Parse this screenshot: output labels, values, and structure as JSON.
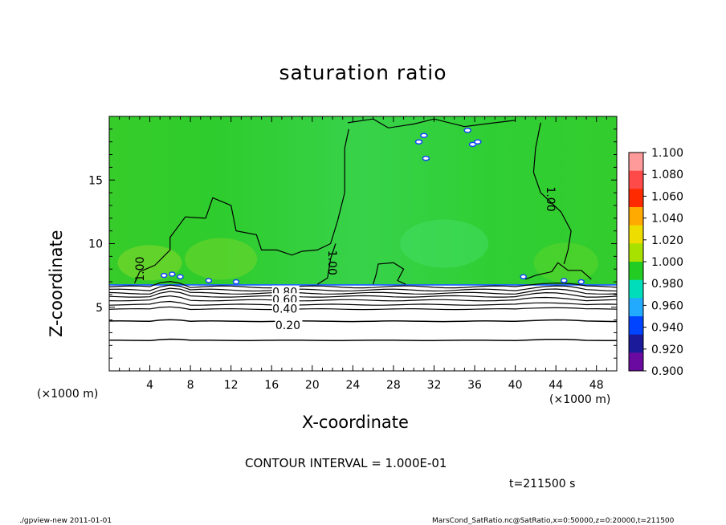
{
  "chart_data": {
    "type": "heatmap",
    "title": "saturation ratio",
    "xlabel": "X-coordinate",
    "ylabel": "Z-coordinate",
    "x_unit": "(×1000 m)",
    "y_unit": "(×1000 m)",
    "xlim": [
      0,
      50
    ],
    "ylim": [
      0,
      20
    ],
    "x_ticks": [
      4,
      8,
      12,
      16,
      20,
      24,
      28,
      32,
      36,
      40,
      44,
      48
    ],
    "y_ticks": [
      5,
      10,
      15
    ],
    "colorbar": {
      "levels": [
        "1.100",
        "1.080",
        "1.060",
        "1.040",
        "1.020",
        "1.000",
        "0.980",
        "0.960",
        "0.940",
        "0.920",
        "0.900"
      ],
      "colors": [
        "#ff9a9a",
        "#ff4a4a",
        "#ff2a00",
        "#ffaa00",
        "#eedd00",
        "#a8e000",
        "#22cc22",
        "#00ddbb",
        "#22aaff",
        "#0044ff",
        "#1a1a9a",
        "#6a0aa0"
      ]
    },
    "contour_labels": [
      {
        "text": "1.00",
        "x": 3.0,
        "z": 8.0,
        "rotate": -90
      },
      {
        "text": "1.00",
        "x": 22.0,
        "z": 8.5,
        "rotate": 90
      },
      {
        "text": "1.00",
        "x": 43.5,
        "z": 13.5,
        "rotate": 90
      },
      {
        "text": "0.80",
        "x": 17.3,
        "z": 6.2,
        "rotate": 0
      },
      {
        "text": "0.60",
        "x": 17.3,
        "z": 5.6,
        "rotate": 0
      },
      {
        "text": "0.40",
        "x": 17.3,
        "z": 4.9,
        "rotate": 0
      },
      {
        "text": "0.20",
        "x": 17.6,
        "z": 3.6,
        "rotate": 0
      }
    ],
    "contour_interval": "CONTOUR INTERVAL = 1.000E-01",
    "time": "t=211500 s"
  },
  "footer": {
    "left": "./gpview-new   2011-01-01",
    "right": "MarsCond_SatRatio.nc@SatRatio,x=0:50000,z=0:20000,t=211500"
  }
}
